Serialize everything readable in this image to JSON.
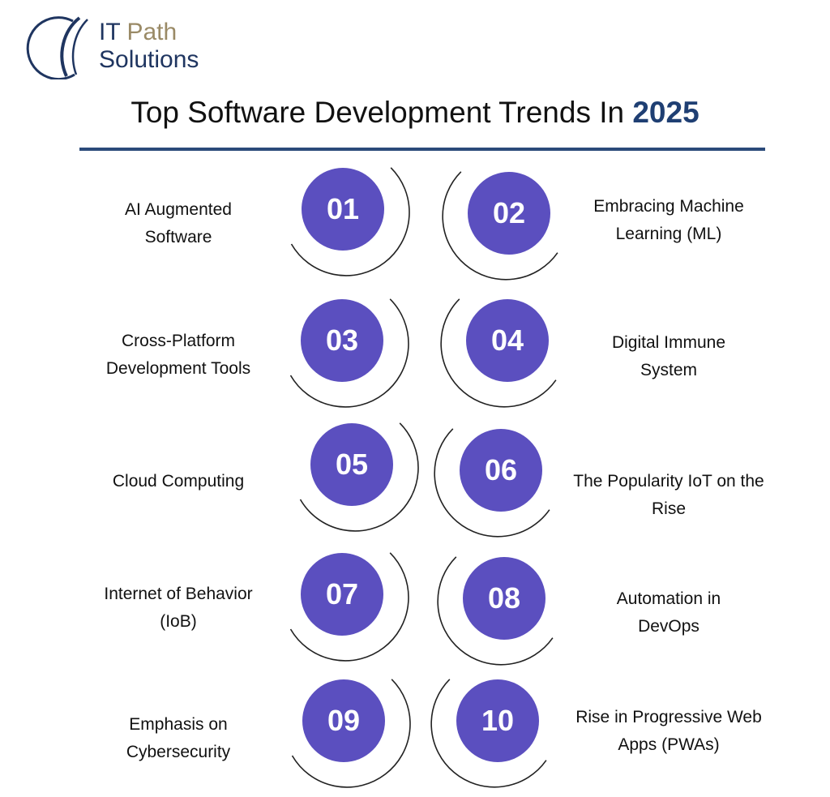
{
  "logo": {
    "line1_a": "IT",
    "line1_b": "Path",
    "line2": "Solutions"
  },
  "title": {
    "text": "Top Software Development Trends In",
    "year": "2025"
  },
  "colors": {
    "circle": "#5b4fbf",
    "accent": "#1f3f73",
    "logo_gold": "#9a8a66"
  },
  "trends": [
    {
      "number": "01",
      "label": "AI Augmented Software"
    },
    {
      "number": "02",
      "label": "Embracing Machine Learning (ML)"
    },
    {
      "number": "03",
      "label": "Cross-Platform Development Tools"
    },
    {
      "number": "04",
      "label": "Digital Immune System"
    },
    {
      "number": "05",
      "label": "Cloud Computing"
    },
    {
      "number": "06",
      "label": "The Popularity IoT on the Rise"
    },
    {
      "number": "07",
      "label": "Internet of Behavior (IoB)"
    },
    {
      "number": "08",
      "label": "Automation in DevOps"
    },
    {
      "number": "09",
      "label": "Emphasis on Cybersecurity"
    },
    {
      "number": "10",
      "label": "Rise in Progressive Web Apps (PWAs)"
    }
  ]
}
